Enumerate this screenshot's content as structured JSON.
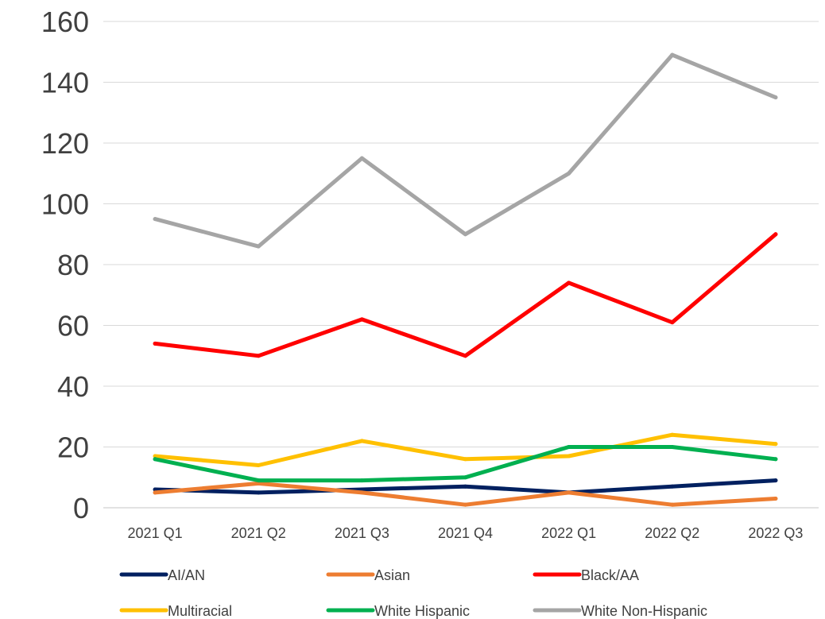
{
  "chart_data": {
    "type": "line",
    "title": "",
    "xlabel": "",
    "ylabel": "",
    "categories": [
      "2021 Q1",
      "2021 Q2",
      "2021 Q3",
      "2021 Q4",
      "2022 Q1",
      "2022 Q2",
      "2022 Q3"
    ],
    "ylim": [
      0,
      160
    ],
    "yticks": [
      0,
      20,
      40,
      60,
      80,
      100,
      120,
      140,
      160
    ],
    "grid": true,
    "legend_position": "bottom",
    "series": [
      {
        "name": "AI/AN",
        "color": "#002060",
        "values": [
          6,
          5,
          6,
          7,
          5,
          7,
          9
        ]
      },
      {
        "name": "Asian",
        "color": "#ED7D31",
        "values": [
          5,
          8,
          5,
          1,
          5,
          1,
          3
        ]
      },
      {
        "name": "Black/AA",
        "color": "#FF0000",
        "values": [
          54,
          50,
          62,
          50,
          74,
          61,
          90
        ]
      },
      {
        "name": "Multiracial",
        "color": "#FFC000",
        "values": [
          17,
          14,
          22,
          16,
          17,
          24,
          21
        ]
      },
      {
        "name": "White Hispanic",
        "color": "#00B050",
        "values": [
          16,
          9,
          9,
          10,
          20,
          20,
          16
        ]
      },
      {
        "name": "White Non-Hispanic",
        "color": "#A5A5A5",
        "values": [
          95,
          86,
          115,
          90,
          110,
          149,
          135
        ]
      }
    ]
  }
}
